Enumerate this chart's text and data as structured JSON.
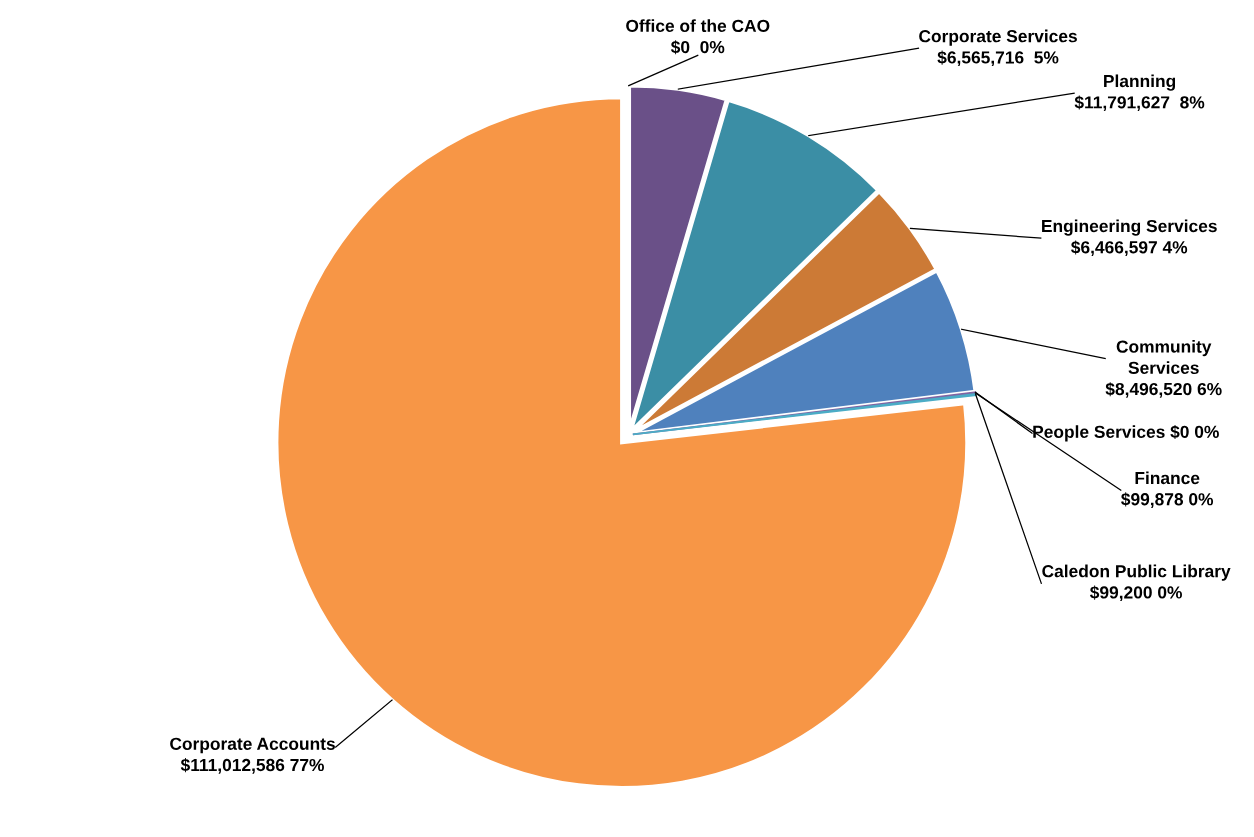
{
  "chart_data": {
    "type": "pie",
    "categories": [
      "Office of the CAO",
      "Corporate Services",
      "Planning",
      "Engineering Services",
      "Community\nServices",
      "People Services",
      "Finance",
      "Caledon Public Library",
      "Corporate Accounts"
    ],
    "values": [
      0,
      6565716,
      11791627,
      6466597,
      8496520,
      0,
      99878,
      99200,
      111012586
    ],
    "value_labels": [
      "$0  0%",
      "$6,565,716  5%",
      "$11,791,627  8%",
      "$6,466,597 4%",
      "$8,496,520 6%",
      "$0 0%",
      "$99,878 0%",
      "$99,200 0%",
      "$111,012,586 77%"
    ],
    "colors": [
      "#7f6084",
      "#6a5088",
      "#3b8ea5",
      "#cc7a36",
      "#4f81bd",
      "#c0504d",
      "#8064a2",
      "#4bacc6",
      "#f79646"
    ],
    "legend": false
  }
}
